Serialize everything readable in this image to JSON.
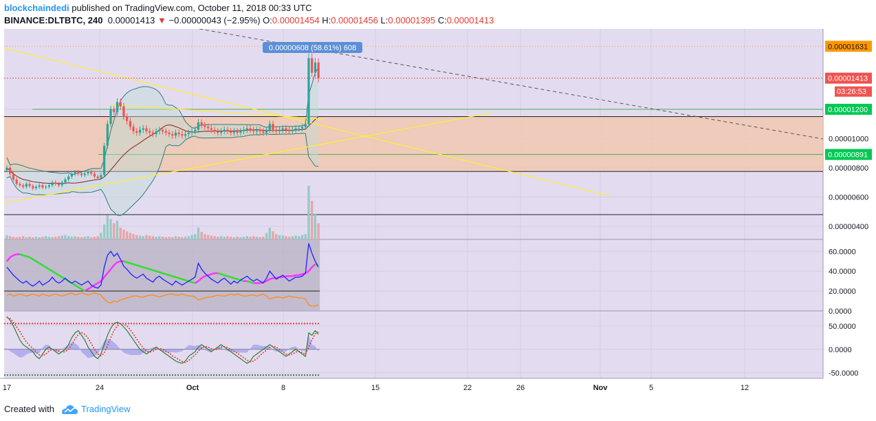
{
  "header": {
    "author": "blockchaindedi",
    "published": "published on TradingView.com, October 11, 2018 00:33 UTC",
    "symbol": "BINANCE:DLTBTC, 240",
    "last": "0.00001413",
    "change": "−0.00000043 (−2.95%)",
    "o_label": "O:",
    "o": "0.00001454",
    "h_label": "H:",
    "h": "0.00001456",
    "l_label": "L:",
    "l": "0.00001395",
    "c_label": "C:",
    "c": "0.00001413"
  },
  "footer": {
    "created_with": "Created with",
    "brand": "TradingView"
  },
  "colors": {
    "background": "#e3dcf0",
    "grid": "#d4cbe6",
    "up": "#26a69a",
    "down": "#ef5350",
    "resistance_fill": "#f0c8b0",
    "trend_yellow": "#ffeb3b",
    "level_green": "#4caf50",
    "bb": "#2e7d7a",
    "ma": "#8b1a1a",
    "price_orange": "#ff9800",
    "price_red": "#ef5350",
    "price_green": "#00c853",
    "tooltip_blue": "#5b8fd6",
    "dmi_blue": "#2a2aff",
    "dmi_orange": "#ff8c1a",
    "dmi_green": "#33dd33",
    "dmi_magenta": "#ff33ff",
    "stoch_red": "#e53935",
    "stoch_green": "#2e7d32",
    "hist_blue": "#9b9bf0"
  },
  "chart_data": [
    {
      "type": "line",
      "title": "BINANCE:DLTBTC, 240",
      "x_tick_labels": [
        "17",
        "24",
        "Oct",
        "8",
        "15",
        "22",
        "26",
        "Nov",
        "5",
        "12"
      ],
      "y_tick_labels": [
        "0.00000400",
        "0.00000600",
        "0.00000800",
        "0.00001000",
        "0.00001200",
        "0.00001413",
        "0.00001631"
      ],
      "y_ticks": [
        4e-06,
        6e-06,
        8e-06,
        1e-05,
        1.2e-05
      ],
      "ylim": [
        3.1e-06,
        1.75e-05
      ],
      "price_labels": [
        {
          "value": 1.631e-05,
          "text": "0.00001631",
          "color": "#ff9800"
        },
        {
          "value": 1.413e-05,
          "text": "0.00001413",
          "color": "#ef5350"
        },
        {
          "value": 1.2e-05,
          "text": "0.00001200",
          "color": "#00c853"
        },
        {
          "value": 8.91e-06,
          "text": "0.00000891",
          "color": "#00c853"
        }
      ],
      "countdown": "03:26:53",
      "tooltip": "0.00000608 (58.61%) 608",
      "levels": [
        1.2e-05,
        8.91e-06
      ],
      "resistance_zone": [
        7.75e-06,
        1.15e-05
      ],
      "close": [
        8e-06,
        7.6e-06,
        7.2e-06,
        6.9e-06,
        6.8e-06,
        6.7e-06,
        6.9e-06,
        6.75e-06,
        6.6e-06,
        6.7e-06,
        6.8e-06,
        6.65e-06,
        6.7e-06,
        6.8e-06,
        7e-06,
        6.9e-06,
        6.8e-06,
        7e-06,
        7.2e-06,
        7.4e-06,
        7.6e-06,
        7.7e-06,
        7.6e-06,
        7.5e-06,
        7.6e-06,
        7.7e-06,
        7.6e-06,
        7.4e-06,
        7.3e-06,
        7.5e-06,
        9.5e-06,
        1.1e-05,
        1.2e-05,
        1.18e-05,
        1.25e-05,
        1.22e-05,
        1.15e-05,
        1.12e-05,
        1.08e-05,
        1.05e-05,
        1.04e-05,
        1.06e-05,
        1.07e-05,
        1.05e-05,
        1.04e-05,
        1.03e-05,
        1.05e-05,
        1.06e-05,
        1.05e-05,
        1.04e-05,
        1.03e-05,
        1.02e-05,
        1.04e-05,
        1.03e-05,
        1.02e-05,
        1.03e-05,
        1.04e-05,
        1.05e-05,
        1.06e-05,
        1.11e-05,
        1.09e-05,
        1.08e-05,
        1.07e-05,
        1.06e-05,
        1.05e-05,
        1.04e-05,
        1.05e-05,
        1.06e-05,
        1.05e-05,
        1.04e-05,
        1.05e-05,
        1.04e-05,
        1.05e-05,
        1.06e-05,
        1.07e-05,
        1.06e-05,
        1.05e-05,
        1.06e-05,
        1.05e-05,
        1.04e-05,
        1.06e-05,
        1.1e-05,
        1.06e-05,
        1.05e-05,
        1.06e-05,
        1.07e-05,
        1.06e-05,
        1.05e-05,
        1.06e-05,
        1.07e-05,
        1.07e-05,
        1.08e-05,
        1.1e-05,
        1.55e-05,
        1.45e-05,
        1.52e-05,
        1.413e-05
      ],
      "volume": [
        0.08,
        0.06,
        0.05,
        0.04,
        0.05,
        0.06,
        0.04,
        0.05,
        0.04,
        0.05,
        0.04,
        0.05,
        0.06,
        0.05,
        0.04,
        0.05,
        0.06,
        0.07,
        0.08,
        0.06,
        0.05,
        0.06,
        0.05,
        0.04,
        0.05,
        0.06,
        0.04,
        0.05,
        0.06,
        0.12,
        0.28,
        0.45,
        0.38,
        0.3,
        0.35,
        0.22,
        0.18,
        0.15,
        0.12,
        0.1,
        0.08,
        0.07,
        0.06,
        0.08,
        0.07,
        0.06,
        0.05,
        0.06,
        0.05,
        0.04,
        0.05,
        0.04,
        0.06,
        0.05,
        0.04,
        0.05,
        0.06,
        0.08,
        0.1,
        0.22,
        0.14,
        0.1,
        0.08,
        0.07,
        0.06,
        0.05,
        0.06,
        0.05,
        0.06,
        0.05,
        0.04,
        0.05,
        0.04,
        0.05,
        0.06,
        0.05,
        0.06,
        0.05,
        0.04,
        0.05,
        0.12,
        0.22,
        0.15,
        0.1,
        0.08,
        0.07,
        0.06,
        0.05,
        0.06,
        0.07,
        0.06,
        0.08,
        0.1,
        1.0,
        0.72,
        0.48,
        0.3
      ]
    },
    {
      "type": "line",
      "title": "",
      "y_tick_labels": [
        "0.0000",
        "20.0000",
        "40.0000",
        "60.0000"
      ],
      "y_ticks": [
        0,
        20,
        40,
        60
      ],
      "ylim": [
        0,
        72
      ],
      "threshold": 20,
      "adx": [
        50,
        54,
        56,
        57,
        57,
        56,
        55,
        54,
        52,
        50,
        48,
        46,
        44,
        42,
        40,
        38,
        36,
        34,
        32,
        30,
        28,
        26,
        24,
        22,
        20,
        22,
        24,
        26,
        28,
        30,
        34,
        38,
        42,
        46,
        49,
        50,
        50,
        49,
        48,
        47,
        46,
        45,
        44,
        43,
        42,
        41,
        40,
        39,
        38,
        37,
        36,
        35,
        34,
        33,
        32,
        31,
        30,
        29,
        28,
        30,
        33,
        35,
        36,
        37,
        38,
        38,
        37,
        36,
        35,
        34,
        33,
        32,
        31,
        30,
        30,
        29,
        28,
        28,
        28,
        29,
        30,
        32,
        33,
        33,
        34,
        34,
        35,
        35,
        35,
        36,
        36,
        37,
        38,
        40,
        44,
        47,
        46
      ],
      "di_plus": [
        44,
        40,
        36,
        33,
        30,
        28,
        30,
        27,
        25,
        27,
        30,
        26,
        28,
        30,
        34,
        30,
        28,
        30,
        33,
        30,
        28,
        30,
        28,
        26,
        28,
        30,
        26,
        24,
        23,
        26,
        44,
        56,
        60,
        55,
        58,
        52,
        45,
        42,
        38,
        35,
        33,
        35,
        37,
        33,
        31,
        29,
        33,
        35,
        32,
        30,
        28,
        26,
        30,
        28,
        26,
        28,
        30,
        32,
        34,
        48,
        42,
        38,
        35,
        32,
        30,
        28,
        31,
        33,
        30,
        27,
        30,
        28,
        31,
        33,
        35,
        32,
        30,
        32,
        30,
        28,
        33,
        40,
        36,
        32,
        34,
        36,
        33,
        30,
        32,
        34,
        34,
        35,
        38,
        68,
        58,
        50,
        44
      ],
      "di_minus": [
        16,
        17,
        15,
        16,
        17,
        16,
        15,
        16,
        17,
        16,
        15,
        17,
        16,
        15,
        16,
        17,
        16,
        15,
        16,
        17,
        18,
        16,
        17,
        18,
        17,
        16,
        17,
        18,
        17,
        16,
        12,
        9,
        8,
        10,
        9,
        11,
        12,
        13,
        14,
        15,
        15,
        14,
        14,
        15,
        16,
        16,
        15,
        14,
        15,
        16,
        17,
        17,
        16,
        16,
        17,
        16,
        15,
        15,
        14,
        11,
        12,
        13,
        14,
        14,
        15,
        16,
        15,
        15,
        16,
        17,
        16,
        17,
        16,
        15,
        15,
        16,
        16,
        15,
        16,
        17,
        15,
        12,
        13,
        14,
        14,
        13,
        14,
        15,
        14,
        14,
        13,
        13,
        12,
        6,
        5,
        5,
        6
      ]
    },
    {
      "type": "line",
      "title": "",
      "y_tick_labels": [
        "-50.0000",
        "0.0000",
        "50.0000"
      ],
      "y_ticks": [
        -50,
        0,
        50
      ],
      "ylim": [
        -62,
        82
      ],
      "upper_level": 55,
      "lower_level": -55,
      "k": [
        70,
        62,
        50,
        35,
        20,
        10,
        5,
        0,
        -5,
        -15,
        -20,
        -10,
        0,
        5,
        0,
        -5,
        -10,
        -5,
        0,
        10,
        25,
        35,
        40,
        30,
        20,
        5,
        -5,
        -15,
        -20,
        -10,
        10,
        30,
        45,
        55,
        58,
        55,
        48,
        40,
        30,
        20,
        10,
        0,
        -5,
        -10,
        -5,
        0,
        5,
        0,
        -5,
        -10,
        -15,
        -20,
        -25,
        -28,
        -30,
        -25,
        -15,
        -10,
        -5,
        5,
        10,
        5,
        0,
        -5,
        0,
        5,
        10,
        5,
        0,
        -5,
        -10,
        -15,
        -20,
        -25,
        -30,
        -25,
        -15,
        -10,
        -5,
        0,
        5,
        10,
        5,
        0,
        -5,
        -10,
        -15,
        -10,
        -5,
        0,
        -5,
        -10,
        -15,
        35,
        30,
        40,
        32
      ],
      "d": [
        68,
        66,
        58,
        48,
        38,
        26,
        16,
        8,
        2,
        -6,
        -12,
        -14,
        -10,
        -4,
        0,
        -1,
        -4,
        -6,
        -5,
        0,
        10,
        22,
        32,
        36,
        32,
        24,
        12,
        0,
        -10,
        -14,
        -8,
        8,
        25,
        40,
        50,
        55,
        55,
        50,
        42,
        32,
        22,
        12,
        3,
        -4,
        -6,
        -4,
        0,
        2,
        0,
        -4,
        -8,
        -14,
        -18,
        -22,
        -26,
        -28,
        -24,
        -18,
        -12,
        -4,
        3,
        6,
        5,
        1,
        -1,
        1,
        5,
        6,
        4,
        0,
        -4,
        -8,
        -13,
        -18,
        -23,
        -27,
        -25,
        -20,
        -13,
        -7,
        -2,
        4,
        7,
        5,
        0,
        -5,
        -10,
        -12,
        -10,
        -6,
        -4,
        -7,
        -11,
        5,
        20,
        33,
        37
      ],
      "hist": [
        2,
        -4,
        -8,
        -13,
        -18,
        -16,
        -11,
        -8,
        -7,
        -9,
        -8,
        4,
        10,
        9,
        0,
        -4,
        -6,
        1,
        5,
        10,
        15,
        13,
        8,
        -6,
        -12,
        -19,
        -17,
        -15,
        -10,
        4,
        18,
        22,
        20,
        15,
        8,
        0,
        -7,
        -10,
        -12,
        -12,
        -12,
        -12,
        -8,
        -6,
        1,
        4,
        5,
        -2,
        -5,
        -6,
        -7,
        -6,
        -7,
        -6,
        -4,
        3,
        9,
        8,
        7,
        9,
        7,
        -1,
        -5,
        -6,
        1,
        4,
        5,
        -1,
        -4,
        -5,
        -6,
        -7,
        -7,
        -7,
        -7,
        2,
        10,
        10,
        8,
        7,
        7,
        6,
        -2,
        -5,
        -5,
        -5,
        -5,
        2,
        5,
        6,
        -1,
        -3,
        -4,
        30,
        10,
        7,
        -5
      ]
    }
  ]
}
